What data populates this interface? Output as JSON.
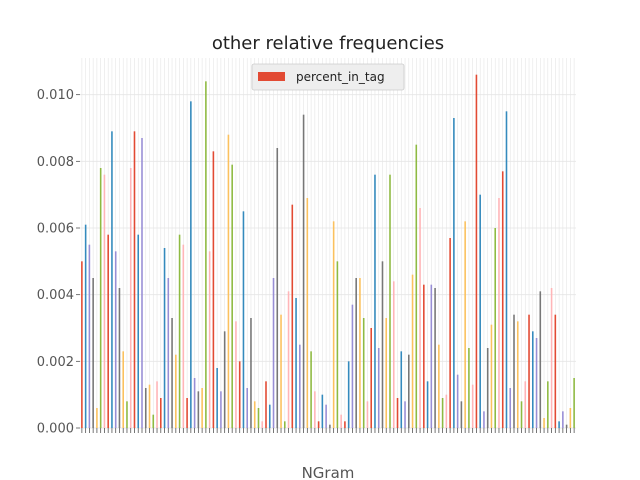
{
  "chart_data": {
    "type": "bar",
    "title": "other relative frequencies",
    "xlabel": "NGram",
    "ylabel": "",
    "ylim": [
      0,
      0.0111
    ],
    "yticks": [
      0.0,
      0.002,
      0.004,
      0.006,
      0.008,
      0.01
    ],
    "ytick_labels": [
      "0.000",
      "0.002",
      "0.004",
      "0.006",
      "0.008",
      "0.010"
    ],
    "grid": true,
    "legend_position": "top-center",
    "series": [
      {
        "name": "percent_in_tag",
        "values": [
          0.005,
          0.0061,
          0.0055,
          0.0045,
          0.0006,
          0.0078,
          0.0076,
          0.0058,
          0.0089,
          0.0053,
          0.0042,
          0.0023,
          0.0008,
          0.0078,
          0.0089,
          0.0058,
          0.0087,
          0.0012,
          0.0013,
          0.0004,
          0.0014,
          0.0009,
          0.0054,
          0.0045,
          0.0033,
          0.0022,
          0.0058,
          0.0055,
          0.0009,
          0.0098,
          0.0015,
          0.0011,
          0.0012,
          0.0104,
          0.0053,
          0.0083,
          0.0018,
          0.0011,
          0.0029,
          0.0088,
          0.0079,
          0.0032,
          0.002,
          0.0065,
          0.0012,
          0.0033,
          0.0008,
          0.0006,
          0.0002,
          0.0014,
          0.0007,
          0.0045,
          0.0084,
          0.0034,
          0.0002,
          0.0041,
          0.0067,
          0.0039,
          0.0025,
          0.0094,
          0.0069,
          0.0023,
          0.0011,
          0.0002,
          0.001,
          0.0007,
          0.0001,
          0.0062,
          0.005,
          0.0004,
          0.0002,
          0.002,
          0.0037,
          0.0045,
          0.0045,
          0.0033,
          0.0008,
          0.003,
          0.0076,
          0.0024,
          0.005,
          0.0033,
          0.0076,
          0.0044,
          0.0009,
          0.0023,
          0.0008,
          0.0022,
          0.0046,
          0.0085,
          0.0066,
          0.0043,
          0.0014,
          0.0043,
          0.0042,
          0.0025,
          0.0009,
          0.001,
          0.0057,
          0.0093,
          0.0016,
          0.0008,
          0.0062,
          0.0024,
          0.0013,
          0.0106,
          0.007,
          0.0005,
          0.0024,
          0.0031,
          0.006,
          0.0069,
          0.0077,
          0.0095,
          0.0012,
          0.0034,
          0.0032,
          0.0008,
          0.0014,
          0.0034,
          0.0029,
          0.0027,
          0.0041,
          0.0003,
          0.0014,
          0.0042,
          0.0034,
          0.0002,
          0.0005,
          0.0001,
          0.0006,
          0.0015
        ]
      }
    ],
    "colors": {
      "bar_cycle": [
        "#e24a33",
        "#348abd",
        "#988ed5",
        "#777777",
        "#fbc15e",
        "#8eba42",
        "#ffb5b8"
      ],
      "legend_swatch": "#e24a33",
      "axes_background": "#ffffff",
      "grid": "#e5e5e5"
    }
  }
}
